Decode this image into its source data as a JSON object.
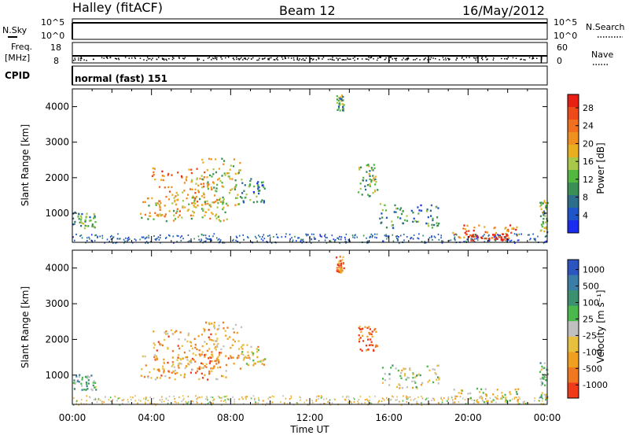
{
  "header": {
    "station": "Halley (fitACF)",
    "beam": "Beam 12",
    "date": "16/May/2012"
  },
  "status_panels": {
    "nsky_label": "N.Sky",
    "nsearch_label": "N.Search",
    "freq_label": "Freq.",
    "freq_unit": "[MHz]",
    "nave_label": "Nave",
    "cpid_label": "CPID",
    "cpid_value": "normal (fast) 151",
    "noise_ticks": [
      "10^5",
      "10^0"
    ],
    "freq_ticks": [
      "18",
      "8"
    ],
    "nave_ticks": [
      "60",
      "0"
    ]
  },
  "time_axis": {
    "label": "Time UT",
    "ticks": [
      "00:00",
      "04:00",
      "08:00",
      "12:00",
      "16:00",
      "20:00",
      "00:00"
    ]
  },
  "chart_data": [
    {
      "type": "heatmap",
      "ylabel": "Slant Range [km]",
      "xlabel": "Time UT",
      "x_range_hours": [
        0,
        24
      ],
      "ylim": [
        180,
        4500
      ],
      "y_ticks": [
        1000,
        2000,
        3000,
        4000
      ],
      "colorbar_label": "Power [dB]",
      "colorbar_ticks": [
        "4",
        "8",
        "12",
        "16",
        "20",
        "24",
        "28"
      ],
      "colorbar_colors": [
        "#1a2cf0",
        "#1e55c8",
        "#2d6e8a",
        "#3a8f55",
        "#52b840",
        "#a9c84a",
        "#e8b020",
        "#f09020",
        "#f07020",
        "#ee4a1a",
        "#e82014"
      ],
      "regions": [
        {
          "t0": 0.0,
          "t1": 1.2,
          "r0": 600,
          "r1": 1050,
          "level": 0.35
        },
        {
          "t0": 3.3,
          "t1": 7.8,
          "r0": 800,
          "r1": 1500,
          "level": 0.55
        },
        {
          "t0": 4.0,
          "t1": 7.2,
          "r0": 900,
          "r1": 2300,
          "level": 0.7
        },
        {
          "t0": 6.5,
          "t1": 8.5,
          "r0": 1200,
          "r1": 2600,
          "level": 0.5
        },
        {
          "t0": 8.5,
          "t1": 9.7,
          "r0": 1300,
          "r1": 2000,
          "level": 0.3
        },
        {
          "t0": 14.4,
          "t1": 15.4,
          "r0": 1500,
          "r1": 2400,
          "level": 0.4
        },
        {
          "t0": 15.5,
          "t1": 18.5,
          "r0": 600,
          "r1": 1300,
          "level": 0.3
        },
        {
          "t0": 19.2,
          "t1": 22.5,
          "r0": 250,
          "r1": 700,
          "level": 0.75
        },
        {
          "t0": 20.0,
          "t1": 22.0,
          "r0": 250,
          "r1": 450,
          "level": 0.95
        },
        {
          "t0": 13.3,
          "t1": 13.7,
          "r0": 3900,
          "r1": 4350,
          "level": 0.4
        },
        {
          "t0": 23.6,
          "t1": 24.0,
          "r0": 300,
          "r1": 1400,
          "level": 0.45
        }
      ]
    },
    {
      "type": "heatmap",
      "ylabel": "Slant Range [km]",
      "xlabel": "Time UT",
      "x_range_hours": [
        0,
        24
      ],
      "ylim": [
        180,
        4500
      ],
      "y_ticks": [
        1000,
        2000,
        3000,
        4000
      ],
      "colorbar_label": "Velocity [m s⁻¹]",
      "colorbar_ticks": [
        "1000",
        "500",
        "100",
        "25",
        "-25",
        "-100",
        "-500",
        "-1000"
      ],
      "colorbar_colors": [
        "#2d55c0",
        "#3a7ea8",
        "#3c9070",
        "#4ab84a",
        "#c0c0c0",
        "#e8c040",
        "#f0a020",
        "#f07820",
        "#f03a1a"
      ],
      "regions": [
        {
          "t0": 0.0,
          "t1": 1.2,
          "r0": 600,
          "r1": 1050,
          "level": 0.35
        },
        {
          "t0": 3.3,
          "t1": 7.8,
          "r0": 900,
          "r1": 1600,
          "level": 0.7
        },
        {
          "t0": 4.0,
          "t1": 7.2,
          "r0": 1000,
          "r1": 2300,
          "level": 0.72
        },
        {
          "t0": 6.5,
          "t1": 8.5,
          "r0": 1200,
          "r1": 2500,
          "level": 0.68
        },
        {
          "t0": 8.5,
          "t1": 9.7,
          "r0": 1300,
          "r1": 1900,
          "level": 0.6
        },
        {
          "t0": 14.4,
          "t1": 15.4,
          "r0": 1700,
          "r1": 2400,
          "level": 0.85
        },
        {
          "t0": 15.5,
          "t1": 18.5,
          "r0": 650,
          "r1": 1300,
          "level": 0.5
        },
        {
          "t0": 19.2,
          "t1": 22.5,
          "r0": 250,
          "r1": 650,
          "level": 0.55
        },
        {
          "t0": 13.3,
          "t1": 13.7,
          "r0": 3900,
          "r1": 4350,
          "level": 0.8
        },
        {
          "t0": 23.6,
          "t1": 24.0,
          "r0": 300,
          "r1": 1400,
          "level": 0.4
        }
      ]
    }
  ]
}
